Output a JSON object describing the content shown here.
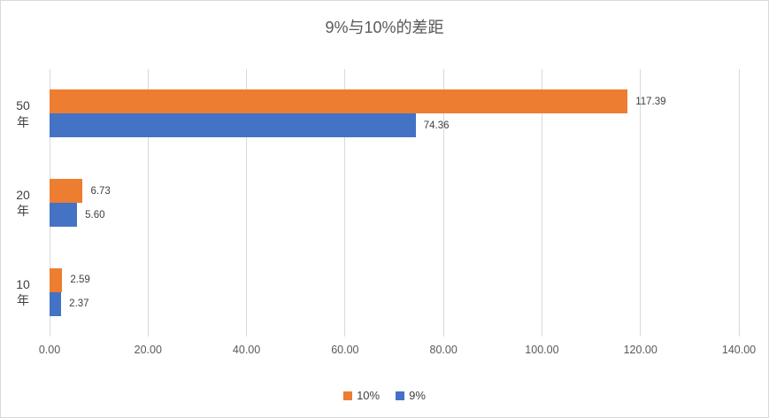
{
  "chart_data": {
    "type": "bar",
    "orientation": "horizontal",
    "title": "9%与10%的差距",
    "categories": [
      "50年",
      "20年",
      "10年"
    ],
    "series": [
      {
        "name": "10%",
        "color": "#ED7D31",
        "values": [
          117.39,
          6.73,
          2.59
        ],
        "data_labels": [
          "117.39",
          "6.73",
          "2.59"
        ]
      },
      {
        "name": "9%",
        "color": "#4472C4",
        "values": [
          74.36,
          5.6,
          2.37
        ],
        "data_labels": [
          "74.36",
          "5.60",
          "2.37"
        ]
      }
    ],
    "x_axis": {
      "min": 0,
      "max": 140,
      "tick_interval": 20,
      "tick_labels": [
        "0.00",
        "20.00",
        "40.00",
        "60.00",
        "80.00",
        "100.00",
        "120.00",
        "140.00"
      ]
    },
    "legend": {
      "position": "bottom",
      "items": [
        "10%",
        "9%"
      ]
    },
    "grid": true,
    "colors": {
      "gridline": "#d9d9d9",
      "text": "#595959",
      "border": "#d9d9d9"
    }
  }
}
